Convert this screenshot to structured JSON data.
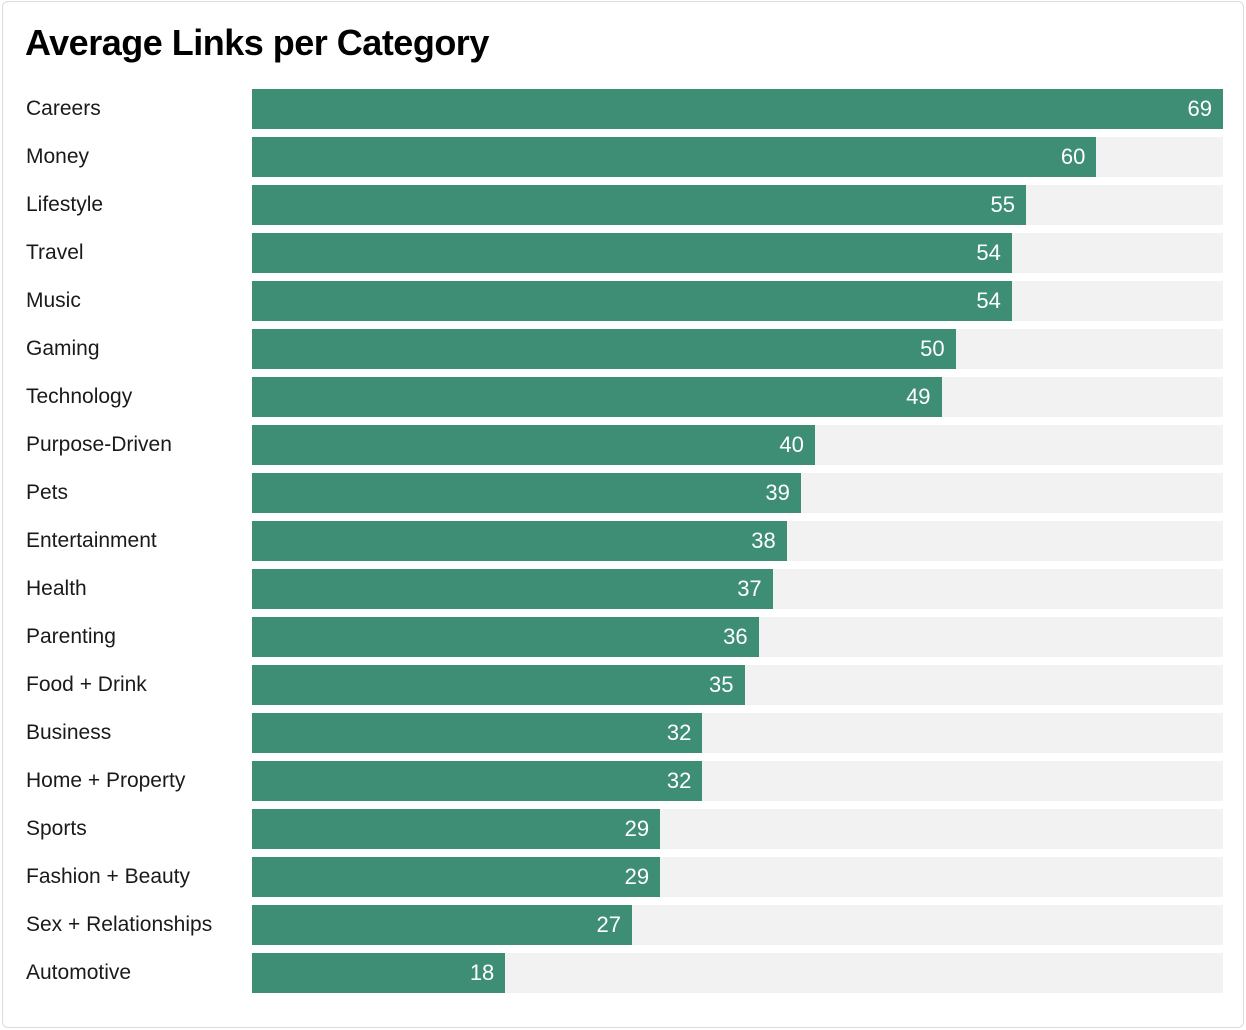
{
  "page": {
    "title": "Average Links per Category"
  },
  "chart_data": {
    "type": "bar",
    "orientation": "horizontal",
    "title": "Average Links per Category",
    "categories": [
      "Careers",
      "Money",
      "Lifestyle",
      "Travel",
      "Music",
      "Gaming",
      "Technology",
      "Purpose-Driven",
      "Pets",
      "Entertainment",
      "Health",
      "Parenting",
      "Food + Drink",
      "Business",
      "Home + Property",
      "Sports",
      "Fashion + Beauty",
      "Sex + Relationships",
      "Automotive"
    ],
    "values": [
      69,
      60,
      55,
      54,
      54,
      50,
      49,
      40,
      39,
      38,
      37,
      36,
      35,
      32,
      32,
      29,
      29,
      27,
      18
    ],
    "xlim": [
      0,
      69
    ],
    "value_label_position": "inside-end",
    "grid": false,
    "legend": false,
    "colors": {
      "bar": "#3E8E76",
      "track": "#F2F2F2",
      "value_text": "#FFFFFF",
      "label_text": "#1A1A1A",
      "title_text": "#000000",
      "card_bg": "#FFFFFF",
      "card_border": "#DCDCDC"
    }
  }
}
